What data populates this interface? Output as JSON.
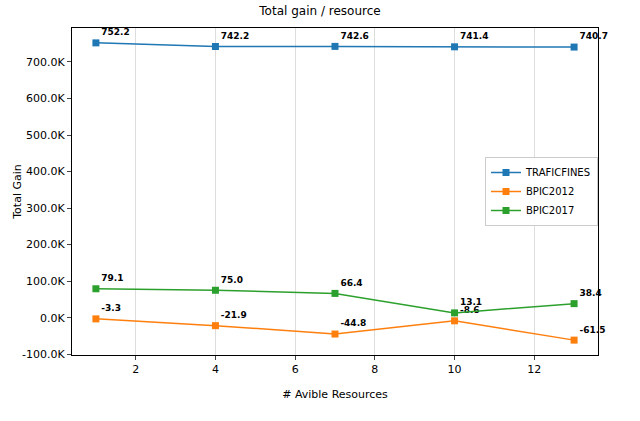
{
  "chart_data": {
    "type": "line",
    "title": "Total gain / resource",
    "x_label": "# Avible Resources",
    "y_label": "Total Gain",
    "x": [
      1,
      4,
      7,
      10,
      13
    ],
    "series": [
      {
        "name": "TRAFICFINES",
        "color": "#1f77b4",
        "values": [
          752200,
          742200,
          742600,
          741400,
          740700
        ],
        "value_labels": [
          "752.2",
          "742.2",
          "742.6",
          "741.4",
          "740.7"
        ]
      },
      {
        "name": "BPIC2012",
        "color": "#ff7f0e",
        "values": [
          -3300,
          -21900,
          -44800,
          -8600,
          -61500
        ],
        "value_labels": [
          "-3.3",
          "-21.9",
          "-44.8",
          "-8.6",
          "-61.5"
        ]
      },
      {
        "name": "BPIC2017",
        "color": "#2ca02c",
        "values": [
          79100,
          75000,
          66400,
          13100,
          38400
        ],
        "value_labels": [
          "79.1",
          "75.0",
          "66.4",
          "13.1",
          "38.4"
        ]
      }
    ],
    "xlim": [
      0.4,
      13.6
    ],
    "xticks": [
      2,
      4,
      6,
      8,
      10,
      12
    ],
    "ylim": [
      -102200,
      792900
    ],
    "yticks": [
      {
        "value": -100000,
        "label": "-100.0K"
      },
      {
        "value": 0,
        "label": "0.0K"
      },
      {
        "value": 100000,
        "label": "100.0K"
      },
      {
        "value": 200000,
        "label": "200.0K"
      },
      {
        "value": 300000,
        "label": "300.0K"
      },
      {
        "value": 400000,
        "label": "400.0K"
      },
      {
        "value": 500000,
        "label": "500.0K"
      },
      {
        "value": 600000,
        "label": "600.0K"
      },
      {
        "value": 700000,
        "label": "700.0K"
      }
    ],
    "grid": "x",
    "legend": "right",
    "marker": "square",
    "data_labels": true
  }
}
